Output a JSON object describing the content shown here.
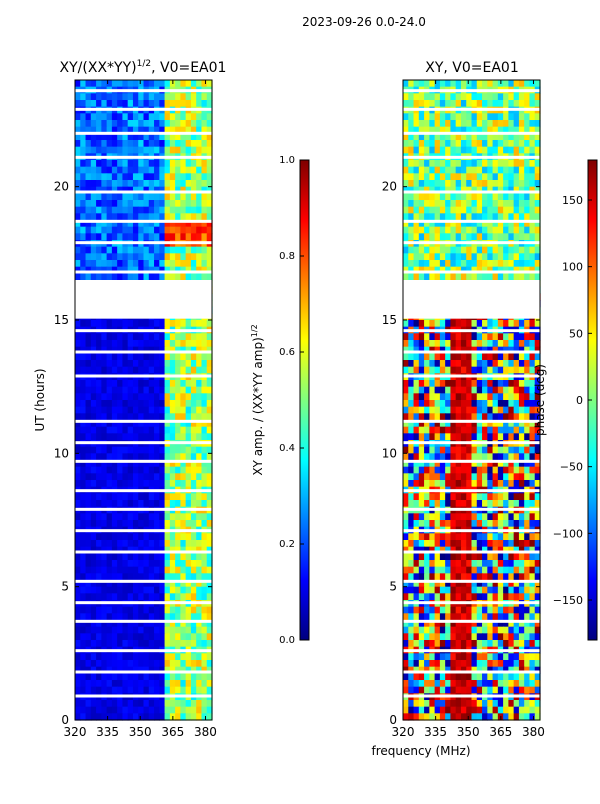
{
  "figure_title": "2023-09-26 0.0-24.0",
  "chart_data": [
    {
      "type": "heatmap",
      "title": "XY/(XX*YY)^1/2, V0=EA01",
      "title_main": "XY/(XX*YY)",
      "title_sup": "1/2",
      "title_rest": ", V0=EA01",
      "xlabel": "frequency (MHz)",
      "ylabel": "UT (hours)",
      "xlim": [
        320,
        383
      ],
      "ylim": [
        0,
        24
      ],
      "xticks": [
        320,
        335,
        350,
        365,
        380
      ],
      "yticks": [
        0,
        5,
        10,
        15,
        20
      ],
      "colorbar": {
        "label": "XY amp. / (XX*YY amp)^1/2",
        "label_main": "XY amp. / (XX*YY amp)",
        "label_sup": "1/2",
        "min": 0.0,
        "max": 1.0,
        "ticks": [
          "0.0",
          "0.2",
          "0.4",
          "0.6",
          "0.8",
          "1.0"
        ],
        "colormap": "jet"
      },
      "gap_rows_hours": [
        0.9,
        1.8,
        2.6,
        3.7,
        4.4,
        5.2,
        6.3,
        7.1,
        7.9,
        8.6,
        9.7,
        10.4,
        11.2,
        12.9,
        13.8,
        14.6,
        15.5,
        16.8,
        17.9,
        18.7,
        19.8,
        21.1,
        22.0,
        22.9,
        23.6
      ]
    },
    {
      "type": "heatmap",
      "title": "XY, V0=EA01",
      "xlabel": "frequency (MHz)",
      "ylabel": "",
      "xlim": [
        320,
        383
      ],
      "ylim": [
        0,
        24
      ],
      "xticks": [
        320,
        335,
        350,
        365,
        380
      ],
      "yticks": [
        0,
        5,
        10,
        15,
        20
      ],
      "colorbar": {
        "label": "phase (deg)",
        "min": -180,
        "max": 180,
        "ticks": [
          "150",
          "100",
          "50",
          "0",
          "−50",
          "−100",
          "−150"
        ],
        "colormap": "jet"
      },
      "gap_rows_hours": [
        0.9,
        1.8,
        2.6,
        3.7,
        4.4,
        5.2,
        6.3,
        7.1,
        7.9,
        8.6,
        9.7,
        10.4,
        11.2,
        12.9,
        13.8,
        14.6,
        15.5,
        16.8,
        17.9,
        18.7,
        19.8,
        21.1,
        22.0,
        22.9,
        23.6
      ]
    }
  ],
  "shared_xlabel": "frequency (MHz)"
}
